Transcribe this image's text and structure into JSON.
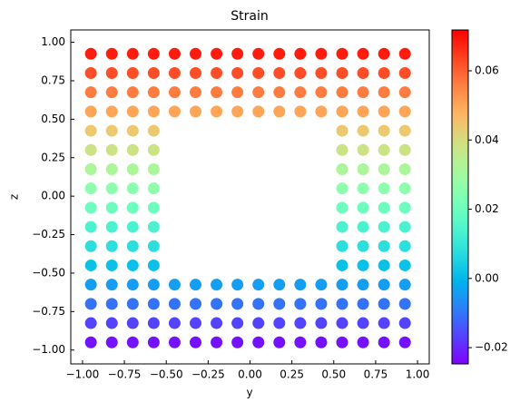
{
  "chart_data": {
    "type": "scatter",
    "title": "Strain",
    "xlabel": "y",
    "ylabel": "z",
    "xlim": [
      -1.07,
      1.07
    ],
    "ylim": [
      -1.09,
      1.08
    ],
    "xticks": [
      {
        "value": -1,
        "label": "−1.00"
      },
      {
        "value": -0.75,
        "label": "−0.75"
      },
      {
        "value": -0.5,
        "label": "−0.50"
      },
      {
        "value": -0.25,
        "label": "−0.25"
      },
      {
        "value": 0,
        "label": "0.00"
      },
      {
        "value": 0.25,
        "label": "0.25"
      },
      {
        "value": 0.5,
        "label": "0.50"
      },
      {
        "value": 0.75,
        "label": "0.75"
      },
      {
        "value": 1,
        "label": "1.00"
      }
    ],
    "yticks": [
      {
        "value": -1,
        "label": "−1.00"
      },
      {
        "value": -0.75,
        "label": "−0.75"
      },
      {
        "value": -0.5,
        "label": "−0.50"
      },
      {
        "value": -0.25,
        "label": "−0.25"
      },
      {
        "value": 0,
        "label": "0.00"
      },
      {
        "value": 0.25,
        "label": "0.25"
      },
      {
        "value": 0.5,
        "label": "0.50"
      },
      {
        "value": 0.75,
        "label": "0.75"
      },
      {
        "value": 1,
        "label": "1.00"
      }
    ],
    "colormap": "rainbow",
    "clim": [
      -0.0247,
      0.0718
    ],
    "cticks": [
      {
        "value": -0.02,
        "label": "−0.02"
      },
      {
        "value": 0,
        "label": "0.00"
      },
      {
        "value": 0.02,
        "label": "0.02"
      },
      {
        "value": 0.04,
        "label": "0.04"
      },
      {
        "value": 0.06,
        "label": "0.06"
      }
    ],
    "x": [
      -0.95,
      -0.825,
      -0.7,
      -0.575,
      -0.45,
      -0.325,
      -0.2,
      -0.075,
      0.05,
      0.175,
      0.3,
      0.425,
      0.55,
      0.675,
      0.8,
      0.925,
      -0.95,
      -0.825,
      -0.7,
      -0.575,
      -0.45,
      -0.325,
      -0.2,
      -0.075,
      0.05,
      0.175,
      0.3,
      0.425,
      0.55,
      0.675,
      0.8,
      0.925,
      -0.95,
      -0.825,
      -0.7,
      -0.575,
      -0.45,
      -0.325,
      -0.2,
      -0.075,
      0.05,
      0.175,
      0.3,
      0.425,
      0.55,
      0.675,
      0.8,
      0.925,
      -0.95,
      -0.825,
      -0.7,
      -0.575,
      -0.45,
      -0.325,
      -0.2,
      -0.075,
      0.05,
      0.175,
      0.3,
      0.425,
      0.55,
      0.675,
      0.8,
      0.925,
      -0.95,
      -0.825,
      -0.7,
      -0.575,
      0.55,
      0.675,
      0.8,
      0.925,
      -0.95,
      -0.825,
      -0.7,
      -0.575,
      0.55,
      0.675,
      0.8,
      0.925,
      -0.95,
      -0.825,
      -0.7,
      -0.575,
      0.55,
      0.675,
      0.8,
      0.925,
      -0.95,
      -0.825,
      -0.7,
      -0.575,
      0.55,
      0.675,
      0.8,
      0.925,
      -0.95,
      -0.825,
      -0.7,
      -0.575,
      0.55,
      0.675,
      0.8,
      0.925,
      -0.95,
      -0.825,
      -0.7,
      -0.575,
      0.55,
      0.675,
      0.8,
      0.925,
      -0.95,
      -0.825,
      -0.7,
      -0.575,
      0.55,
      0.675,
      0.8,
      0.925,
      -0.95,
      -0.825,
      -0.7,
      -0.575,
      0.55,
      0.675,
      0.8,
      0.925,
      -0.95,
      -0.825,
      -0.7,
      -0.575,
      -0.45,
      -0.325,
      -0.2,
      -0.075,
      0.05,
      0.175,
      0.3,
      0.425,
      0.55,
      0.675,
      0.8,
      0.925,
      -0.95,
      -0.825,
      -0.7,
      -0.575,
      -0.45,
      -0.325,
      -0.2,
      -0.075,
      0.05,
      0.175,
      0.3,
      0.425,
      0.55,
      0.675,
      0.8,
      0.925,
      -0.95,
      -0.825,
      -0.7,
      -0.575,
      -0.45,
      -0.325,
      -0.2,
      -0.075,
      0.05,
      0.175,
      0.3,
      0.425,
      0.55,
      0.675,
      0.8,
      0.925,
      -0.95,
      -0.825,
      -0.7,
      -0.575,
      -0.45,
      -0.325,
      -0.2,
      -0.075,
      0.05,
      0.175,
      0.3,
      0.425,
      0.55,
      0.675,
      0.8,
      0.925
    ],
    "y": [
      -0.95,
      -0.95,
      -0.95,
      -0.95,
      -0.95,
      -0.95,
      -0.95,
      -0.95,
      -0.95,
      -0.95,
      -0.95,
      -0.95,
      -0.95,
      -0.95,
      -0.95,
      -0.95,
      -0.825,
      -0.825,
      -0.825,
      -0.825,
      -0.825,
      -0.825,
      -0.825,
      -0.825,
      -0.825,
      -0.825,
      -0.825,
      -0.825,
      -0.825,
      -0.825,
      -0.825,
      -0.825,
      -0.7,
      -0.7,
      -0.7,
      -0.7,
      -0.7,
      -0.7,
      -0.7,
      -0.7,
      -0.7,
      -0.7,
      -0.7,
      -0.7,
      -0.7,
      -0.7,
      -0.7,
      -0.7,
      -0.575,
      -0.575,
      -0.575,
      -0.575,
      -0.575,
      -0.575,
      -0.575,
      -0.575,
      -0.575,
      -0.575,
      -0.575,
      -0.575,
      -0.575,
      -0.575,
      -0.575,
      -0.575,
      -0.45,
      -0.45,
      -0.45,
      -0.45,
      -0.45,
      -0.45,
      -0.45,
      -0.45,
      -0.325,
      -0.325,
      -0.325,
      -0.325,
      -0.325,
      -0.325,
      -0.325,
      -0.325,
      -0.2,
      -0.2,
      -0.2,
      -0.2,
      -0.2,
      -0.2,
      -0.2,
      -0.2,
      -0.075,
      -0.075,
      -0.075,
      -0.075,
      -0.075,
      -0.075,
      -0.075,
      -0.075,
      0.05,
      0.05,
      0.05,
      0.05,
      0.05,
      0.05,
      0.05,
      0.05,
      0.175,
      0.175,
      0.175,
      0.175,
      0.175,
      0.175,
      0.175,
      0.175,
      0.3,
      0.3,
      0.3,
      0.3,
      0.3,
      0.3,
      0.3,
      0.3,
      0.425,
      0.425,
      0.425,
      0.425,
      0.425,
      0.425,
      0.425,
      0.425,
      0.55,
      0.55,
      0.55,
      0.55,
      0.55,
      0.55,
      0.55,
      0.55,
      0.55,
      0.55,
      0.55,
      0.55,
      0.55,
      0.55,
      0.55,
      0.55,
      0.675,
      0.675,
      0.675,
      0.675,
      0.675,
      0.675,
      0.675,
      0.675,
      0.675,
      0.675,
      0.675,
      0.675,
      0.675,
      0.675,
      0.675,
      0.675,
      0.8,
      0.8,
      0.8,
      0.8,
      0.8,
      0.8,
      0.8,
      0.8,
      0.8,
      0.8,
      0.8,
      0.8,
      0.8,
      0.8,
      0.8,
      0.8,
      0.925,
      0.925,
      0.925,
      0.925,
      0.925,
      0.925,
      0.925,
      0.925,
      0.925,
      0.925,
      0.925,
      0.925,
      0.925,
      0.925,
      0.925,
      0.925
    ],
    "values": [
      -0.0226,
      -0.0226,
      -0.0226,
      -0.0226,
      -0.0226,
      -0.0226,
      -0.0226,
      -0.0226,
      -0.0226,
      -0.0226,
      -0.0226,
      -0.0226,
      -0.0226,
      -0.0226,
      -0.0226,
      -0.0226,
      -0.0165,
      -0.0165,
      -0.0165,
      -0.0165,
      -0.0165,
      -0.0165,
      -0.0165,
      -0.0165,
      -0.0165,
      -0.0165,
      -0.0165,
      -0.0165,
      -0.0165,
      -0.0165,
      -0.0165,
      -0.0165,
      -0.0105,
      -0.0105,
      -0.0105,
      -0.0105,
      -0.0105,
      -0.0105,
      -0.0105,
      -0.0105,
      -0.0105,
      -0.0105,
      -0.0105,
      -0.0105,
      -0.0105,
      -0.0105,
      -0.0105,
      -0.0105,
      -0.0044,
      -0.0044,
      -0.0044,
      -0.0044,
      -0.0044,
      -0.0044,
      -0.0044,
      -0.0044,
      -0.0044,
      -0.0044,
      -0.0044,
      -0.0044,
      -0.0044,
      -0.0044,
      -0.0044,
      -0.0044,
      0.0017,
      0.0017,
      0.0017,
      0.0017,
      0.0017,
      0.0017,
      0.0017,
      0.0017,
      0.0077,
      0.0077,
      0.0077,
      0.0077,
      0.0077,
      0.0077,
      0.0077,
      0.0077,
      0.0138,
      0.0138,
      0.0138,
      0.0138,
      0.0138,
      0.0138,
      0.0138,
      0.0138,
      0.0199,
      0.0199,
      0.0199,
      0.0199,
      0.0199,
      0.0199,
      0.0199,
      0.0199,
      0.0259,
      0.0259,
      0.0259,
      0.0259,
      0.0259,
      0.0259,
      0.0259,
      0.0259,
      0.032,
      0.032,
      0.032,
      0.032,
      0.032,
      0.032,
      0.032,
      0.032,
      0.0381,
      0.0381,
      0.0381,
      0.0381,
      0.0381,
      0.0381,
      0.0381,
      0.0381,
      0.0441,
      0.0441,
      0.0441,
      0.0441,
      0.0441,
      0.0441,
      0.0441,
      0.0441,
      0.0502,
      0.0502,
      0.0502,
      0.0502,
      0.0502,
      0.0502,
      0.0502,
      0.0502,
      0.0502,
      0.0502,
      0.0502,
      0.0502,
      0.0502,
      0.0502,
      0.0502,
      0.0502,
      0.0562,
      0.0562,
      0.0562,
      0.0562,
      0.0562,
      0.0562,
      0.0562,
      0.0562,
      0.0562,
      0.0562,
      0.0562,
      0.0562,
      0.0562,
      0.0562,
      0.0562,
      0.0562,
      0.0623,
      0.0623,
      0.0623,
      0.0623,
      0.0623,
      0.0623,
      0.0623,
      0.0623,
      0.0623,
      0.0623,
      0.0623,
      0.0623,
      0.0623,
      0.0623,
      0.0623,
      0.0623,
      0.0684,
      0.0684,
      0.0684,
      0.0684,
      0.0684,
      0.0684,
      0.0684,
      0.0684,
      0.0684,
      0.0684,
      0.0684,
      0.0684,
      0.0684,
      0.0684,
      0.0684,
      0.0684
    ]
  }
}
